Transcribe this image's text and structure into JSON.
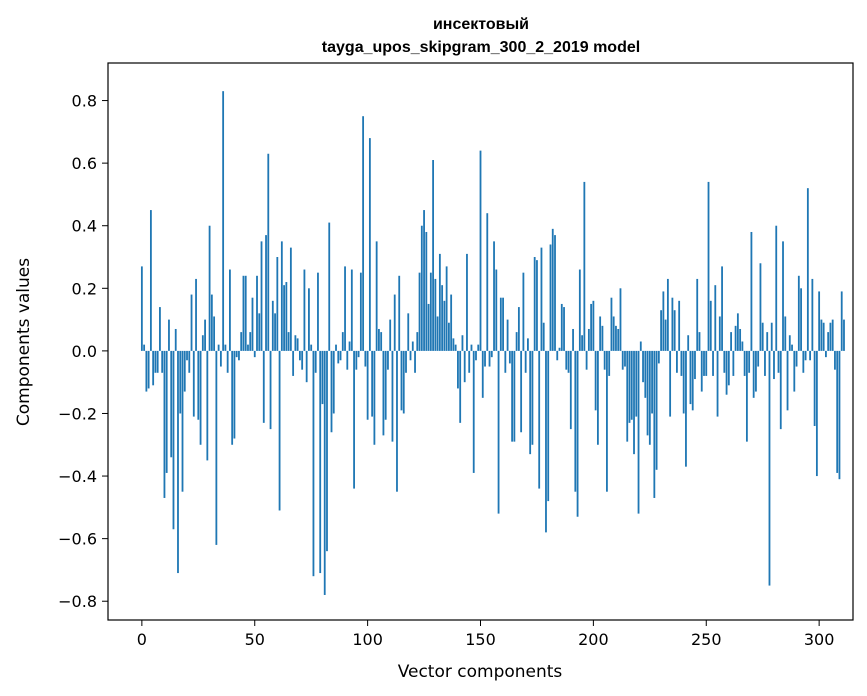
{
  "chart_data": {
    "type": "bar",
    "title": "инсектовый",
    "subtitle": "tayga_upos_skipgram_300_2_2019 model",
    "xlabel": "Vector components",
    "ylabel": "Components values",
    "xlim": [
      -15,
      315
    ],
    "ylim": [
      -0.86,
      0.92
    ],
    "xticks": [
      0,
      50,
      100,
      150,
      200,
      250,
      300
    ],
    "xtick_labels": [
      "0",
      "50",
      "100",
      "150",
      "200",
      "250",
      "300"
    ],
    "yticks": [
      -0.8,
      -0.6,
      -0.4,
      -0.2,
      0.0,
      0.2,
      0.4,
      0.6,
      0.8
    ],
    "ytick_labels": [
      "−0.8",
      "−0.6",
      "−0.4",
      "−0.2",
      "0.0",
      "0.2",
      "0.4",
      "0.6",
      "0.8"
    ],
    "grid": false,
    "bar_color": "#1f77b4",
    "values": [
      0.27,
      0.02,
      -0.13,
      -0.12,
      0.45,
      -0.11,
      -0.07,
      -0.07,
      0.14,
      -0.07,
      -0.47,
      -0.39,
      0.1,
      -0.34,
      -0.57,
      0.07,
      -0.71,
      -0.2,
      -0.45,
      -0.13,
      -0.03,
      -0.07,
      0.18,
      -0.21,
      0.23,
      -0.22,
      -0.3,
      0.05,
      0.1,
      -0.35,
      0.4,
      0.18,
      0.11,
      -0.62,
      0.02,
      -0.05,
      0.83,
      0.02,
      -0.07,
      0.26,
      -0.3,
      -0.28,
      -0.02,
      -0.03,
      0.06,
      0.24,
      0.24,
      0.02,
      0.06,
      0.17,
      -0.02,
      0.24,
      0.12,
      0.35,
      -0.23,
      0.37,
      0.63,
      -0.25,
      0.16,
      0.12,
      0.3,
      -0.51,
      0.35,
      0.21,
      0.22,
      0.06,
      0.33,
      -0.08,
      0.05,
      0.04,
      -0.03,
      -0.06,
      0.26,
      -0.1,
      0.2,
      0.02,
      -0.72,
      -0.07,
      0.25,
      -0.71,
      -0.17,
      -0.78,
      -0.64,
      0.41,
      -0.26,
      -0.2,
      0.02,
      -0.04,
      -0.03,
      0.06,
      0.27,
      -0.06,
      0.03,
      0.26,
      -0.44,
      -0.06,
      -0.02,
      0.25,
      0.75,
      -0.05,
      -0.22,
      0.68,
      -0.21,
      -0.3,
      0.35,
      0.07,
      0.06,
      -0.27,
      -0.22,
      -0.06,
      0.1,
      -0.29,
      0.18,
      -0.45,
      0.24,
      -0.19,
      -0.2,
      -0.07,
      0.12,
      -0.03,
      0.03,
      -0.07,
      0.06,
      0.25,
      0.4,
      0.45,
      0.38,
      0.15,
      0.25,
      0.61,
      0.23,
      0.11,
      0.31,
      0.21,
      0.16,
      0.27,
      0.09,
      0.18,
      0.04,
      0.02,
      -0.12,
      -0.23,
      0.05,
      -0.1,
      0.31,
      -0.07,
      0.02,
      -0.39,
      -0.03,
      0.02,
      0.64,
      -0.15,
      -0.05,
      0.44,
      -0.05,
      -0.02,
      0.35,
      0.26,
      -0.52,
      0.17,
      0.17,
      -0.07,
      0.1,
      -0.04,
      -0.29,
      -0.29,
      0.06,
      0.14,
      -0.26,
      0.25,
      -0.07,
      0.04,
      -0.33,
      -0.3,
      0.3,
      0.29,
      -0.44,
      0.33,
      0.09,
      -0.58,
      -0.48,
      0.34,
      0.39,
      0.37,
      -0.03,
      0.01,
      0.15,
      0.14,
      -0.06,
      -0.07,
      -0.25,
      0.07,
      -0.45,
      -0.53,
      0.26,
      0.05,
      0.54,
      -0.06,
      0.07,
      0.15,
      0.16,
      -0.19,
      -0.3,
      0.11,
      0.08,
      -0.06,
      -0.45,
      -0.08,
      0.17,
      0.11,
      0.08,
      0.07,
      0.2,
      -0.06,
      -0.05,
      -0.29,
      -0.23,
      -0.22,
      -0.33,
      -0.21,
      -0.52,
      0.03,
      -0.1,
      -0.15,
      -0.27,
      -0.3,
      -0.2,
      -0.47,
      -0.38,
      -0.04,
      0.13,
      0.19,
      0.1,
      0.23,
      -0.21,
      0.17,
      0.13,
      -0.07,
      0.16,
      -0.08,
      -0.2,
      -0.37,
      0.05,
      -0.17,
      -0.19,
      -0.09,
      0.23,
      0.06,
      -0.13,
      -0.08,
      -0.08,
      0.54,
      0.16,
      -0.08,
      0.21,
      -0.21,
      0.11,
      0.27,
      -0.07,
      -0.14,
      -0.11,
      0.06,
      -0.08,
      0.08,
      0.12,
      0.07,
      0.03,
      -0.08,
      -0.29,
      -0.07,
      0.38,
      -0.15,
      -0.13,
      -0.05,
      0.28,
      0.09,
      -0.08,
      0.06,
      -0.75,
      0.09,
      -0.09,
      0.4,
      -0.07,
      -0.25,
      0.35,
      0.11,
      -0.19,
      0.05,
      0.02,
      -0.13,
      -0.05,
      0.24,
      0.2,
      -0.07,
      -0.03,
      0.52,
      -0.03,
      0.23,
      -0.24,
      -0.4,
      0.19,
      0.1,
      0.09,
      -0.02,
      0.06,
      0.09,
      0.1,
      -0.06,
      -0.39,
      -0.41,
      0.19,
      0.1
    ]
  }
}
